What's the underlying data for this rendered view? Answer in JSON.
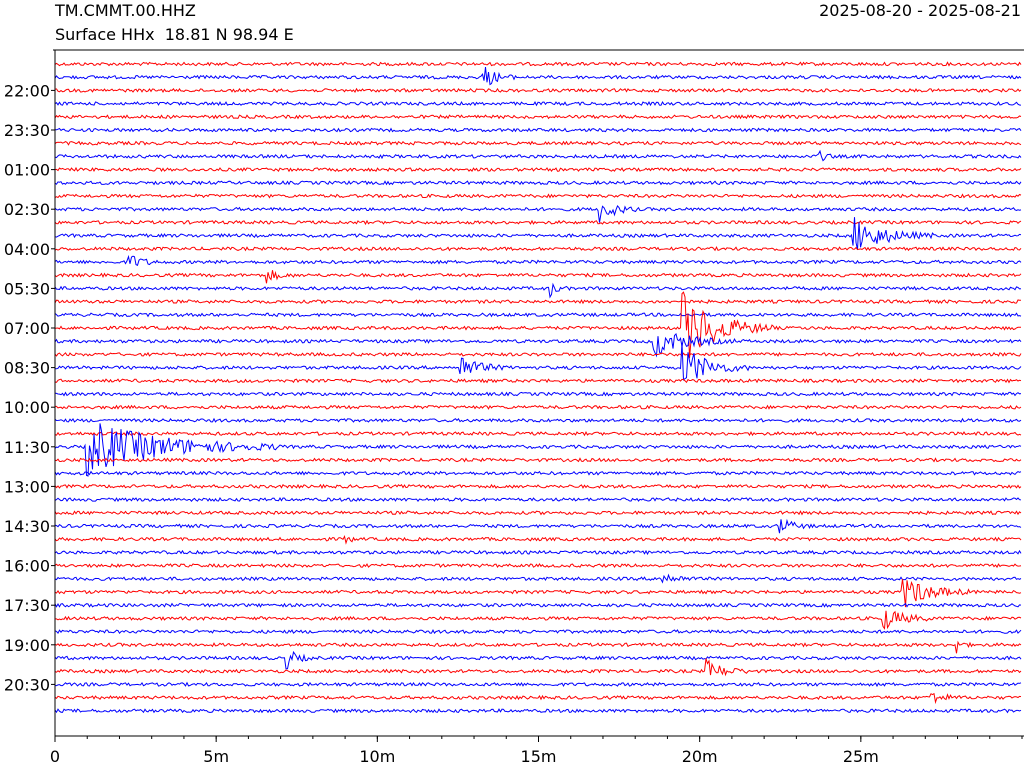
{
  "header": {
    "station": "TM.CMMT.00.HHZ",
    "subtitle": "Surface HHx  18.81 N 98.94 E",
    "date_range": "2025-08-20 - 2025-08-21"
  },
  "chart_data": {
    "type": "line",
    "title": "TM.CMMT.00.HHZ",
    "subtitle": "Surface HHx  18.81 N 98.94 E",
    "date_range": "2025-08-20 - 2025-08-21",
    "xlabel": "",
    "ylabel": "",
    "x_unit": "minutes",
    "xlim": [
      0,
      30
    ],
    "x_ticks": [
      {
        "value": 0,
        "label": "0"
      },
      {
        "value": 5,
        "label": "5m"
      },
      {
        "value": 10,
        "label": "10m"
      },
      {
        "value": 15,
        "label": "15m"
      },
      {
        "value": 20,
        "label": "20m"
      },
      {
        "value": 25,
        "label": "25m"
      }
    ],
    "x_minor_step": 1,
    "row_count": 50,
    "row_minutes": 30,
    "row_colors": [
      "#ff0000",
      "#0000ff"
    ],
    "y_labels": [
      {
        "row": 2,
        "label": "22:00"
      },
      {
        "row": 5,
        "label": "23:30"
      },
      {
        "row": 8,
        "label": "01:00"
      },
      {
        "row": 11,
        "label": "02:30"
      },
      {
        "row": 14,
        "label": "04:00"
      },
      {
        "row": 17,
        "label": "05:30"
      },
      {
        "row": 20,
        "label": "07:00"
      },
      {
        "row": 23,
        "label": "08:30"
      },
      {
        "row": 26,
        "label": "10:00"
      },
      {
        "row": 29,
        "label": "11:30"
      },
      {
        "row": 32,
        "label": "13:00"
      },
      {
        "row": 35,
        "label": "14:30"
      },
      {
        "row": 38,
        "label": "16:00"
      },
      {
        "row": 41,
        "label": "17:30"
      },
      {
        "row": 44,
        "label": "19:00"
      },
      {
        "row": 47,
        "label": "20:30"
      }
    ],
    "events": [
      {
        "row": 1,
        "minute": 13.3,
        "amplitude": 1.4,
        "duration": 1.0
      },
      {
        "row": 7,
        "minute": 23.6,
        "amplitude": 1.0,
        "duration": 0.6
      },
      {
        "row": 11,
        "minute": 16.9,
        "amplitude": 1.6,
        "duration": 1.2
      },
      {
        "row": 13,
        "minute": 24.8,
        "amplitude": 2.2,
        "duration": 2.5
      },
      {
        "row": 15,
        "minute": 2.3,
        "amplitude": 1.0,
        "duration": 1.0
      },
      {
        "row": 16,
        "minute": 6.6,
        "amplitude": 0.8,
        "duration": 0.8
      },
      {
        "row": 17,
        "minute": 15.4,
        "amplitude": 0.8,
        "duration": 0.5
      },
      {
        "row": 20,
        "minute": 19.5,
        "amplitude": 4.5,
        "duration": 2.8
      },
      {
        "row": 21,
        "minute": 18.6,
        "amplitude": 1.8,
        "duration": 2.5
      },
      {
        "row": 23,
        "minute": 12.6,
        "amplitude": 1.5,
        "duration": 1.5
      },
      {
        "row": 23,
        "minute": 19.5,
        "amplitude": 2.8,
        "duration": 2.0
      },
      {
        "row": 29,
        "minute": 1.0,
        "amplitude": 3.5,
        "duration": 6.0
      },
      {
        "row": 35,
        "minute": 22.5,
        "amplitude": 1.0,
        "duration": 1.0
      },
      {
        "row": 36,
        "minute": 9.0,
        "amplitude": 0.6,
        "duration": 0.4
      },
      {
        "row": 39,
        "minute": 18.8,
        "amplitude": 0.8,
        "duration": 1.2
      },
      {
        "row": 40,
        "minute": 26.3,
        "amplitude": 2.0,
        "duration": 2.2
      },
      {
        "row": 42,
        "minute": 25.7,
        "amplitude": 1.4,
        "duration": 1.6
      },
      {
        "row": 44,
        "minute": 28.0,
        "amplitude": 0.8,
        "duration": 0.4
      },
      {
        "row": 45,
        "minute": 7.2,
        "amplitude": 1.2,
        "duration": 0.8
      },
      {
        "row": 46,
        "minute": 20.2,
        "amplitude": 1.4,
        "duration": 1.4
      },
      {
        "row": 48,
        "minute": 27.2,
        "amplitude": 0.8,
        "duration": 1.0
      }
    ]
  }
}
